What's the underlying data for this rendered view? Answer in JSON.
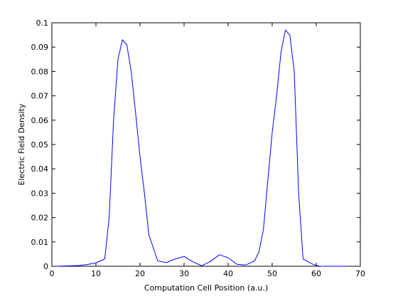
{
  "chart_data": {
    "type": "line",
    "title": "",
    "xlabel": "Computation Cell Position (a.u.)",
    "ylabel": "Electric Field Density",
    "xlim": [
      0,
      70
    ],
    "ylim": [
      0,
      0.1
    ],
    "x_ticks": [
      "0",
      "10",
      "20",
      "30",
      "40",
      "50",
      "60",
      "70"
    ],
    "y_ticks": [
      "0",
      "0.01",
      "0.02",
      "0.03",
      "0.04",
      "0.05",
      "0.06",
      "0.07",
      "0.08",
      "0.09",
      "0.1"
    ],
    "grid": false,
    "series_color": "#0000ff",
    "series": [
      {
        "x": [
          1,
          6,
          8,
          10,
          12,
          13,
          14,
          15,
          16,
          17,
          18,
          19,
          20,
          21,
          22,
          24,
          26,
          28,
          30,
          32,
          34,
          36,
          38,
          40,
          42,
          44,
          46,
          47,
          48,
          49,
          50,
          51,
          52,
          53,
          54,
          55,
          56,
          57,
          58,
          59,
          60,
          61,
          67
        ],
        "y": [
          0.0,
          0.0003,
          0.0007,
          0.0014,
          0.003,
          0.02,
          0.06,
          0.085,
          0.093,
          0.091,
          0.08,
          0.063,
          0.045,
          0.03,
          0.013,
          0.0022,
          0.0015,
          0.003,
          0.004,
          0.0018,
          0.0002,
          0.002,
          0.0047,
          0.0035,
          0.0008,
          0.0005,
          0.0022,
          0.006,
          0.015,
          0.035,
          0.055,
          0.07,
          0.088,
          0.097,
          0.095,
          0.08,
          0.03,
          0.003,
          0.002,
          0.001,
          0.0003,
          0.0,
          0.0
        ]
      }
    ]
  }
}
